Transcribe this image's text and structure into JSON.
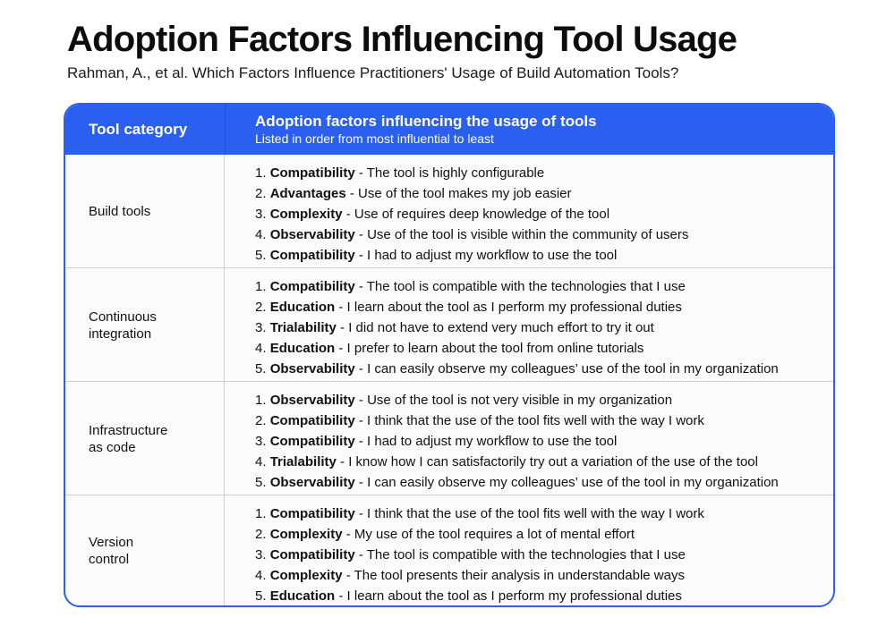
{
  "title": "Adoption Factors Influencing Tool Usage",
  "subtitle": "Rahman, A., et al. Which Factors Influence Practitioners' Usage of Build Automation Tools?",
  "colors": {
    "header_bg": "#2b5ff0",
    "border": "#2b5ff0"
  },
  "table": {
    "header": {
      "category": "Tool category",
      "factors": "Adoption factors influencing the usage of tools",
      "factors_note": "Listed in order from most influential to least"
    },
    "rows": [
      {
        "category": "Build tools",
        "items": [
          {
            "num": "1.",
            "factor": "Compatibility",
            "text": " - The tool is highly configurable"
          },
          {
            "num": "2.",
            "factor": "Advantages",
            "text": " - Use of the tool makes my job easier"
          },
          {
            "num": "3.",
            "factor": "Complexity",
            "text": " - Use of requires deep knowledge of the tool"
          },
          {
            "num": "4.",
            "factor": "Observability",
            "text": " - Use of the tool is visible within the community of users"
          },
          {
            "num": "5.",
            "factor": "Compatibility",
            "text": " - I had to adjust my workflow to use the tool"
          }
        ]
      },
      {
        "category": "Continuous\nintegration",
        "items": [
          {
            "num": "1.",
            "factor": "Compatibility",
            "text": " - The tool is compatible with the technologies that I use"
          },
          {
            "num": "2.",
            "factor": "Education",
            "text": " - I learn about the tool as I perform my professional duties"
          },
          {
            "num": "3.",
            "factor": "Trialability",
            "text": " - I did not have to extend very much effort to try it out"
          },
          {
            "num": "4.",
            "factor": "Education",
            "text": " - I prefer to learn about the tool from online tutorials"
          },
          {
            "num": "5.",
            "factor": "Observability",
            "text": " - I can easily observe my colleagues’ use of the tool in my organization"
          }
        ]
      },
      {
        "category": "Infrastructure\nas code",
        "items": [
          {
            "num": "1.",
            "factor": "Observability",
            "text": " - Use of the tool is not very visible in my organization"
          },
          {
            "num": "2.",
            "factor": "Compatibility",
            "text": " - I think that the use of the tool fits well with the way I work"
          },
          {
            "num": "3.",
            "factor": "Compatibility",
            "text": " - I had to adjust my workflow to use the tool"
          },
          {
            "num": "4.",
            "factor": "Trialability",
            "text": " - I know how I can satisfactorily try out a variation of the use of the tool"
          },
          {
            "num": "5.",
            "factor": "Observability",
            "text": " - I can easily observe my colleagues’ use of the tool in my organization"
          }
        ]
      },
      {
        "category": "Version\ncontrol",
        "items": [
          {
            "num": "1.",
            "factor": "Compatibility",
            "text": " - I think that the use of the tool fits well with the way I work"
          },
          {
            "num": "2.",
            "factor": "Complexity",
            "text": " - My use of the tool requires a lot of mental effort"
          },
          {
            "num": "3.",
            "factor": "Compatibility",
            "text": " - The tool is compatible with the technologies that I use"
          },
          {
            "num": "4.",
            "factor": "Complexity",
            "text": " - The tool presents their analysis in understandable ways"
          },
          {
            "num": "5.",
            "factor": "Education",
            "text": " - I learn about the tool as I perform my professional duties"
          }
        ]
      }
    ]
  }
}
